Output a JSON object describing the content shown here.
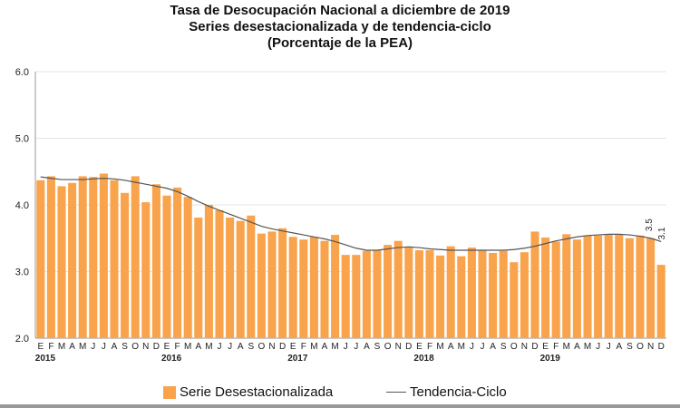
{
  "chart_data": {
    "type": "bar",
    "title": [
      "Tasa de Desocupación Nacional a diciembre de 2019",
      "Series desestacionalizada y de tendencia-ciclo",
      "(Porcentaje de la PEA)"
    ],
    "xlabel": "",
    "ylabel": "",
    "ylim": [
      2.0,
      6.0
    ],
    "yticks": [
      "2.0",
      "3.0",
      "4.0",
      "5.0",
      "6.0"
    ],
    "months": [
      "E",
      "F",
      "M",
      "A",
      "M",
      "J",
      "J",
      "A",
      "S",
      "O",
      "N",
      "D"
    ],
    "years": [
      "2015",
      "2016",
      "2017",
      "2018",
      "2019"
    ],
    "series": [
      {
        "name": "Serie Desestacionalizada",
        "type": "bar",
        "color": "#f9a34c",
        "values": [
          4.37,
          4.43,
          4.28,
          4.33,
          4.43,
          4.42,
          4.47,
          4.37,
          4.18,
          4.43,
          4.04,
          4.31,
          4.14,
          4.26,
          4.12,
          3.81,
          4.0,
          3.92,
          3.81,
          3.76,
          3.84,
          3.57,
          3.6,
          3.65,
          3.52,
          3.48,
          3.52,
          3.46,
          3.55,
          3.25,
          3.25,
          3.31,
          3.32,
          3.4,
          3.46,
          3.36,
          3.32,
          3.32,
          3.24,
          3.38,
          3.23,
          3.36,
          3.32,
          3.28,
          3.31,
          3.14,
          3.29,
          3.6,
          3.51,
          3.45,
          3.56,
          3.48,
          3.54,
          3.54,
          3.55,
          3.55,
          3.5,
          3.54,
          3.5,
          3.1
        ]
      },
      {
        "name": "Tendencia-Ciclo",
        "type": "line",
        "color": "#555555",
        "values": [
          4.42,
          4.4,
          4.38,
          4.38,
          4.38,
          4.39,
          4.4,
          4.39,
          4.37,
          4.34,
          4.31,
          4.28,
          4.25,
          4.2,
          4.13,
          4.05,
          3.98,
          3.92,
          3.86,
          3.8,
          3.74,
          3.68,
          3.64,
          3.61,
          3.58,
          3.55,
          3.52,
          3.49,
          3.45,
          3.4,
          3.35,
          3.32,
          3.32,
          3.34,
          3.36,
          3.37,
          3.36,
          3.34,
          3.33,
          3.32,
          3.32,
          3.32,
          3.32,
          3.32,
          3.32,
          3.33,
          3.35,
          3.38,
          3.42,
          3.46,
          3.49,
          3.52,
          3.54,
          3.55,
          3.56,
          3.56,
          3.55,
          3.53,
          3.5,
          3.45
        ]
      }
    ],
    "annotations": [
      "3.5",
      "3.1"
    ],
    "legend": "bottom"
  }
}
